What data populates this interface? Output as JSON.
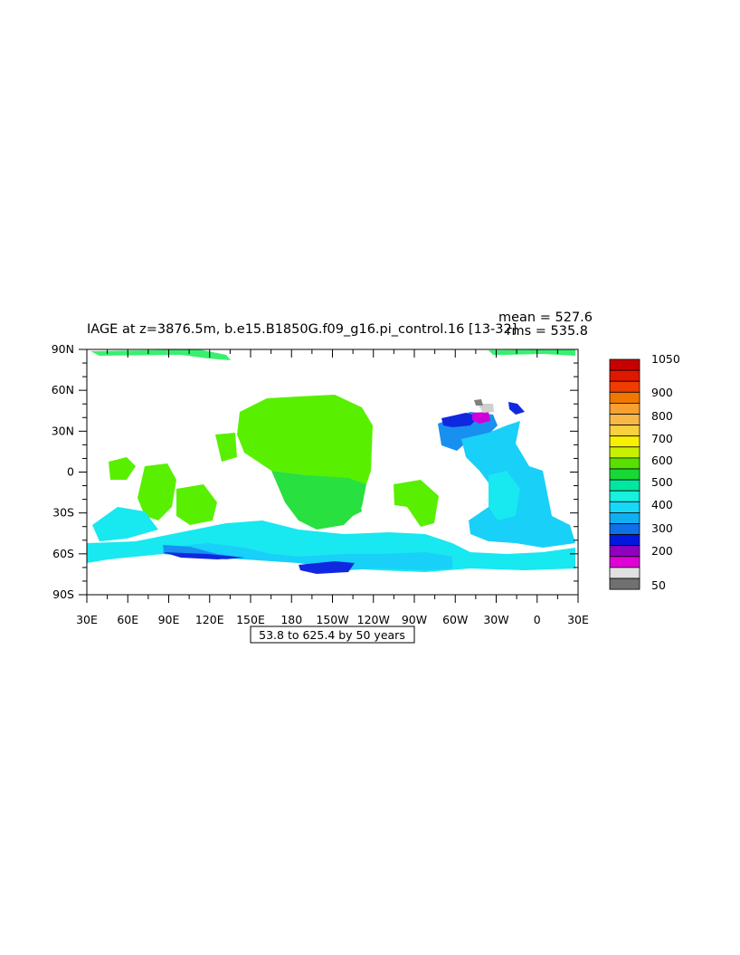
{
  "title": "IAGE at z=3876.5m, b.e15.B1850G.f09_g16.pi_control.16 [13-32]",
  "stats": {
    "mean": "mean = 527.6",
    "rms": "rms = 535.8"
  },
  "footer_box": "53.8 to 625.4 by 50 years",
  "axes": {
    "lat_ticks": [
      "90N",
      "60N",
      "30N",
      "0",
      "30S",
      "60S",
      "90S"
    ],
    "lon_ticks": [
      "30E",
      "60E",
      "90E",
      "120E",
      "150E",
      "180",
      "150W",
      "120W",
      "90W",
      "60W",
      "30W",
      "0",
      "30E"
    ]
  },
  "colorbar": {
    "labels": [
      "1050",
      "900",
      "800",
      "700",
      "600",
      "500",
      "400",
      "300",
      "200",
      "50"
    ],
    "colors": [
      "#c80000",
      "#e01800",
      "#f03c00",
      "#f07800",
      "#f8a030",
      "#f8b848",
      "#f8d040",
      "#f8f000",
      "#c8f000",
      "#58e000",
      "#18d838",
      "#00e8a0",
      "#18f0e0",
      "#18d8f8",
      "#10b0f0",
      "#1070e8",
      "#0018e0",
      "#9000c0",
      "#e000d8",
      "#e0e0e0",
      "#707070"
    ]
  },
  "regions": {
    "old_pacific": "#58f000",
    "mid_pacific": "#28e040",
    "deep_fill": "#18e8f0",
    "southern_ocean": "#18d0f8",
    "young_ocean": "#1890f0",
    "youngest": "#1028e0",
    "very_young": "#d000d8",
    "greenish_band": "#30f080",
    "gray_patch": "#d0d0d0",
    "dark_gray_patch": "#808080"
  }
}
